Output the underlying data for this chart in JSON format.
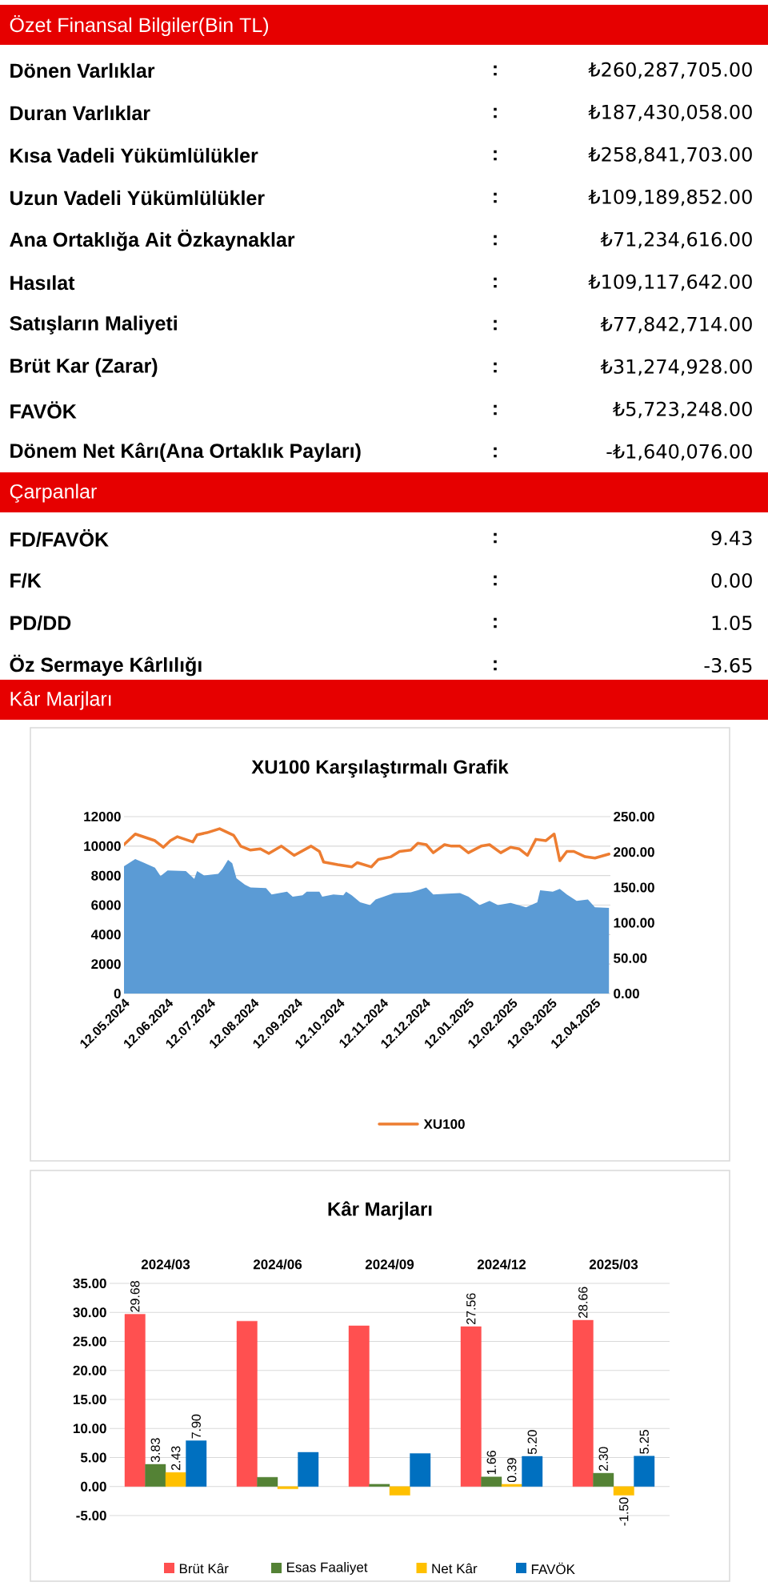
{
  "chart_data": [
    {
      "type": "other",
      "title": "Özet Finansal Bilgiler(Bin TL)",
      "categories": [
        "Dönen Varlıklar",
        "Duran Varlıklar",
        "Kısa Vadeli Yükümlülükler",
        "Uzun Vadeli Yükümlülükler",
        "Ana Ortaklığa Ait Özkaynaklar",
        "Hasılat",
        "Satışların Maliyeti",
        "Brüt Kar (Zarar)",
        "FAVÖK",
        "Dönem Net Kârı(Ana Ortaklık Payları)"
      ],
      "annotations": [
        ":",
        ":",
        ":",
        ":",
        ":",
        ":",
        ":",
        ":",
        ":",
        ":"
      ],
      "value_labels": [
        "₺260,287,705.00",
        "₺187,430,058.00",
        "₺258,841,703.00",
        "₺109,189,852.00",
        "₺71,234,616.00",
        "₺109,117,642.00",
        "₺77,842,714.00",
        "₺31,274,928.00",
        "₺5,723,248.00",
        "-₺1,640,076.00"
      ]
    },
    {
      "type": "other",
      "title": "Çarpanlar",
      "categories": [
        "FD/FAVÖK",
        "F/K",
        "PD/DD",
        "Öz Sermaye Kârlılığı"
      ],
      "annotations": [
        ":",
        ":",
        ":",
        ":"
      ],
      "value_labels": [
        "9.43",
        "0.00",
        "1.05",
        "-3.65"
      ]
    },
    {
      "type": "other",
      "title": "Kâr Marjları"
    },
    {
      "type": "line",
      "title": "XU100 Karşılaştırmalı  Grafik",
      "xlim": [
        "2024-05-12",
        "2025-04-23"
      ],
      "xticks": [
        {
          "value": "2024-05-12",
          "label": "12.05.2024"
        },
        {
          "value": "2024-06-12",
          "label": "12.06.2024"
        },
        {
          "value": "2024-07-12",
          "label": "12.07.2024"
        },
        {
          "value": "2024-08-12",
          "label": "12.08.2024"
        },
        {
          "value": "2024-09-12",
          "label": "12.09.2024"
        },
        {
          "value": "2024-10-12",
          "label": "12.10.2024"
        },
        {
          "value": "2024-11-12",
          "label": "12.11.2024"
        },
        {
          "value": "2024-12-12",
          "label": "12.12.2024"
        },
        {
          "value": "2025-01-12",
          "label": "12.01.2025"
        },
        {
          "value": "2025-02-12",
          "label": "12.02.2025"
        },
        {
          "value": "2025-03-12",
          "label": "12.03.2025"
        },
        {
          "value": "2025-04-12",
          "label": "12.04.2025"
        }
      ],
      "ylim": [
        0,
        12000
      ],
      "yticks": [
        0,
        2000,
        4000,
        6000,
        8000,
        10000,
        12000
      ],
      "y2lim": [
        0,
        250
      ],
      "y2ticks": [
        {
          "value": 0,
          "label": "0.00"
        },
        {
          "value": 50,
          "label": "50.00"
        },
        {
          "value": 100,
          "label": "100.00"
        },
        {
          "value": 150,
          "label": "150.00"
        },
        {
          "value": 200,
          "label": "200.00"
        },
        {
          "value": 250,
          "label": "250.00"
        }
      ],
      "grid": "y",
      "legend": "bottom",
      "series": [
        {
          "type": "area",
          "axis": "y2",
          "color": "#5b9bd5",
          "x": [
            "2024-05-12",
            "2024-05-20",
            "2024-05-26",
            "2024-06-03",
            "2024-06-07",
            "2024-06-12",
            "2024-06-25",
            "2024-07-01",
            "2024-07-03",
            "2024-07-08",
            "2024-07-18",
            "2024-07-21",
            "2024-07-25",
            "2024-07-28",
            "2024-07-31",
            "2024-08-06",
            "2024-08-10",
            "2024-08-21",
            "2024-08-25",
            "2024-09-05",
            "2024-09-09",
            "2024-09-16",
            "2024-09-19",
            "2024-09-28",
            "2024-09-30",
            "2024-10-08",
            "2024-10-15",
            "2024-10-17",
            "2024-10-21",
            "2024-10-27",
            "2024-11-03",
            "2024-11-07",
            "2024-11-20",
            "2024-12-02",
            "2024-12-07",
            "2024-12-13",
            "2024-12-18",
            "2024-12-28",
            "2025-01-06",
            "2025-01-12",
            "2025-01-20",
            "2025-01-27",
            "2025-02-02",
            "2025-02-11",
            "2025-02-22",
            "2025-03-02",
            "2025-03-04",
            "2025-03-13",
            "2025-03-18",
            "2025-03-23",
            "2025-03-30",
            "2025-04-07",
            "2025-04-12",
            "2025-04-22"
          ],
          "values": [
            180,
            190,
            185,
            178,
            166,
            174,
            173,
            162,
            173,
            167,
            169,
            176,
            189,
            184,
            163,
            154,
            150,
            149,
            140,
            144,
            137,
            139,
            144,
            144,
            137,
            140,
            139,
            144,
            139,
            129,
            125,
            133,
            142,
            143,
            146,
            150,
            140,
            141,
            142,
            137,
            125,
            131,
            125,
            128,
            122,
            129,
            146,
            144,
            148,
            140,
            131,
            133,
            122,
            121
          ]
        },
        {
          "name": "XU100",
          "color": "#ed7d31",
          "x": [
            "2024-05-12",
            "2024-05-20",
            "2024-06-03",
            "2024-06-09",
            "2024-06-14",
            "2024-06-19",
            "2024-06-30",
            "2024-07-03",
            "2024-07-10",
            "2024-07-19",
            "2024-07-29",
            "2024-08-03",
            "2024-08-10",
            "2024-08-17",
            "2024-08-23",
            "2024-09-01",
            "2024-09-10",
            "2024-09-22",
            "2024-09-28",
            "2024-10-01",
            "2024-10-11",
            "2024-10-21",
            "2024-10-25",
            "2024-11-04",
            "2024-11-09",
            "2024-11-18",
            "2024-11-24",
            "2024-12-02",
            "2024-12-07",
            "2024-12-13",
            "2024-12-18",
            "2024-12-26",
            "2024-12-31",
            "2025-01-06",
            "2025-01-12",
            "2025-01-21",
            "2025-01-27",
            "2025-02-04",
            "2025-02-11",
            "2025-02-17",
            "2025-02-23",
            "2025-03-01",
            "2025-03-08",
            "2025-03-14",
            "2025-03-18",
            "2025-03-23",
            "2025-03-28",
            "2025-04-05",
            "2025-04-12",
            "2025-04-22"
          ],
          "values": [
            10100,
            10820,
            10370,
            9920,
            10370,
            10640,
            10280,
            10770,
            10910,
            11180,
            10730,
            10000,
            9730,
            9820,
            9500,
            10000,
            9370,
            10000,
            9640,
            8920,
            8740,
            8590,
            8880,
            8590,
            9100,
            9280,
            9640,
            9730,
            10190,
            10100,
            9550,
            10100,
            10000,
            10000,
            9550,
            10000,
            10100,
            9550,
            9920,
            9820,
            9370,
            10460,
            10370,
            10820,
            9010,
            9640,
            9640,
            9280,
            9190,
            9460
          ]
        }
      ]
    },
    {
      "type": "bar",
      "title": "Kâr Marjları",
      "categories": [
        "2024/03",
        "2024/06",
        "2024/09",
        "2024/12",
        "2025/03"
      ],
      "ylim": [
        -5,
        35
      ],
      "yticks": [
        {
          "value": -5,
          "label": "-5.00"
        },
        {
          "value": 0,
          "label": "0.00"
        },
        {
          "value": 5,
          "label": "5.00"
        },
        {
          "value": 10,
          "label": "10.00"
        },
        {
          "value": 15,
          "label": "15.00"
        },
        {
          "value": 20,
          "label": "20.00"
        },
        {
          "value": 25,
          "label": "25.00"
        },
        {
          "value": 30,
          "label": "30.00"
        },
        {
          "value": 35,
          "label": "35.00"
        }
      ],
      "grid": "y",
      "legend": "bottom",
      "series": [
        {
          "name": "Brüt Kâr",
          "color": "#ff5050",
          "values": [
            29.68,
            28.5,
            27.7,
            27.56,
            28.66
          ],
          "value_labels": [
            "29.68",
            null,
            null,
            "27.56",
            "28.66"
          ]
        },
        {
          "name": "Esas Faaliyet",
          "color": "#548235",
          "values": [
            3.83,
            1.6,
            0.4,
            1.66,
            2.3
          ],
          "value_labels": [
            "3.83",
            null,
            null,
            "1.66",
            "2.30"
          ]
        },
        {
          "name": "Net Kâr",
          "color": "#ffc000",
          "values": [
            2.43,
            -0.4,
            -1.5,
            0.39,
            -1.5
          ],
          "value_labels": [
            "2.43",
            null,
            null,
            "0.39",
            "-1.50"
          ]
        },
        {
          "name": "FAVÖK",
          "color": "#0070c0",
          "values": [
            7.9,
            5.9,
            5.7,
            5.2,
            5.25
          ],
          "value_labels": [
            "7.90",
            null,
            null,
            "5.20",
            "5.25"
          ]
        }
      ]
    }
  ]
}
